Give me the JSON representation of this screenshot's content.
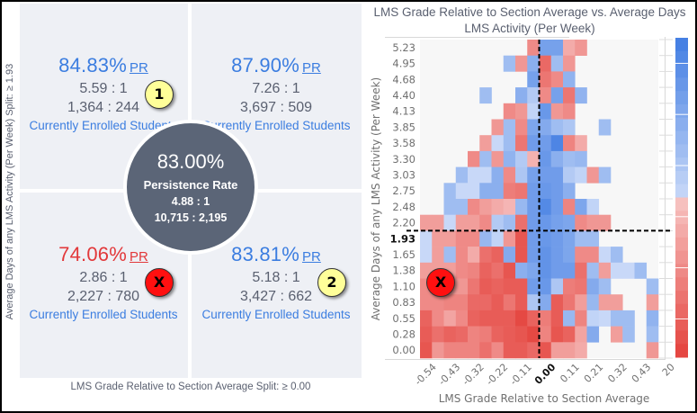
{
  "quadrants": {
    "top_left": {
      "pct": "84.83%",
      "pr": "PR",
      "ratio": "5.59 : 1",
      "counts": "1,364 : 244",
      "label": "Currently Enrolled Students",
      "status": "good"
    },
    "top_right": {
      "pct": "87.90%",
      "pr": "PR",
      "ratio": "7.26 : 1",
      "counts": "3,697 : 509",
      "label": "Currently Enrolled Students",
      "status": "good"
    },
    "bottom_left": {
      "pct": "74.06%",
      "pr": "PR",
      "ratio": "2.86 : 1",
      "counts": "2,227 : 780",
      "label": "Currently Enrolled Students",
      "status": "bad"
    },
    "bottom_right": {
      "pct": "83.81%",
      "pr": "PR",
      "ratio": "5.18 : 1",
      "counts": "3,427 : 662",
      "label": "Currently Enrolled Students",
      "status": "good"
    }
  },
  "center": {
    "pct": "83.00%",
    "label": "Persistence Rate",
    "ratio": "4.88 : 1",
    "counts": "10,715 : 2,195"
  },
  "badges": {
    "one": "1",
    "two": "2",
    "x_left": "X",
    "x_chart": "X"
  },
  "axis_labels": {
    "left_vertical": "Average Days of any LMS Activity (Per Week) Split: ≥ 1.93",
    "bottom": "LMS Grade Relative to Section Average Split: ≥ 0.00"
  },
  "colors": {
    "blue": "#3b7de0",
    "red": "#e2383a",
    "circle": "#5b6577",
    "empty": "#f7f7f7"
  },
  "chart_data": {
    "type": "heatmap",
    "title": "LMS Grade Relative to Section Average vs. Average Days LMS Activity (Per Week)",
    "xlabel": "LMS Grade Relative to Section Average",
    "ylabel": "Average Days of any LMS Activity (Per Week)",
    "x_ticks": [
      "-0.54",
      "-0.43",
      "-0.32",
      "-0.22",
      "-0.11",
      "0.00",
      "0.11",
      "0.21",
      "0.32",
      "0.43",
      "20"
    ],
    "x_split": "0.00",
    "y_ticks": [
      "5.23",
      "4.95",
      "4.68",
      "4.40",
      "4.13",
      "3.85",
      "3.58",
      "3.30",
      "3.03",
      "2.75",
      "2.48",
      "2.20",
      "1.93",
      "1.65",
      "1.38",
      "1.10",
      "0.83",
      "0.55",
      "0.28",
      "0.00"
    ],
    "y_split": "1.93",
    "n_cols": 20,
    "value_scale": "negative = red (lower persistence), positive = blue (higher persistence), null = no data",
    "legend": "colorbar-right",
    "rows": [
      [
        null,
        null,
        null,
        null,
        null,
        null,
        null,
        null,
        null,
        -0.45,
        0.6,
        0.6,
        -0.2,
        -0.35,
        null,
        null,
        null,
        null,
        null,
        null
      ],
      [
        null,
        null,
        null,
        null,
        null,
        null,
        null,
        0.3,
        -0.35,
        0.45,
        -0.7,
        0.3,
        -0.35,
        null,
        null,
        null,
        null,
        null,
        null,
        null
      ],
      [
        null,
        null,
        null,
        null,
        null,
        null,
        null,
        null,
        null,
        0.6,
        -0.6,
        -0.45,
        0.4,
        null,
        null,
        null,
        null,
        null,
        null,
        null
      ],
      [
        null,
        null,
        null,
        null,
        null,
        0.3,
        null,
        null,
        0.45,
        0.15,
        -0.45,
        0.6,
        -0.6,
        0.4,
        null,
        null,
        null,
        null,
        null,
        null
      ],
      [
        null,
        null,
        null,
        null,
        null,
        null,
        null,
        -0.45,
        -0.35,
        0.05,
        0.7,
        -0.35,
        -0.45,
        null,
        null,
        null,
        null,
        null,
        null,
        null
      ],
      [
        null,
        null,
        null,
        null,
        null,
        null,
        -0.35,
        0.3,
        -0.45,
        0.55,
        0.5,
        0.3,
        0.2,
        null,
        null,
        0.3,
        null,
        null,
        null,
        null
      ],
      [
        null,
        null,
        null,
        null,
        null,
        -0.3,
        0.0,
        0.3,
        -0.6,
        0.65,
        0.65,
        0.9,
        -0.5,
        -0.2,
        null,
        null,
        null,
        null,
        null,
        null
      ],
      [
        null,
        null,
        null,
        null,
        -0.45,
        0.3,
        -0.35,
        0.4,
        0.15,
        -0.15,
        0.7,
        0.45,
        0.3,
        0.35,
        null,
        null,
        null,
        null,
        null,
        null
      ],
      [
        null,
        null,
        null,
        0.3,
        0.0,
        0.0,
        0.45,
        -0.45,
        0.2,
        0.6,
        0.65,
        0.65,
        0.15,
        0.05,
        -0.35,
        0.3,
        null,
        null,
        null,
        null
      ],
      [
        null,
        null,
        0.3,
        0.0,
        0.0,
        0.45,
        0.45,
        -0.55,
        -0.6,
        0.65,
        0.7,
        0.65,
        0.45,
        null,
        null,
        null,
        null,
        null,
        null,
        null
      ],
      [
        null,
        null,
        0.3,
        0.3,
        -0.45,
        -0.3,
        -0.2,
        -0.12,
        0.35,
        0.65,
        0.85,
        0.65,
        -0.5,
        0.55,
        0.05,
        null,
        null,
        null,
        null,
        null
      ],
      [
        -0.3,
        -0.3,
        0.0,
        -0.3,
        -0.3,
        -0.45,
        0.15,
        0.3,
        -0.65,
        0.65,
        0.7,
        0.6,
        0.55,
        -0.45,
        -0.35,
        -0.35,
        null,
        null,
        null,
        null
      ],
      [
        0.0,
        -0.3,
        -0.3,
        -0.45,
        -0.45,
        0.35,
        0.05,
        -0.35,
        -0.85,
        0.65,
        0.7,
        0.65,
        0.55,
        0.3,
        0.3,
        null,
        null,
        null,
        null,
        null
      ],
      [
        0.0,
        -0.3,
        0.3,
        -0.45,
        -0.2,
        -0.65,
        -0.75,
        0.5,
        -0.85,
        0.65,
        0.75,
        0.65,
        0.55,
        -0.45,
        -0.45,
        0.0,
        0.3,
        null,
        null,
        null
      ],
      [
        -0.3,
        -0.3,
        -0.3,
        -0.45,
        -0.5,
        -0.75,
        -0.65,
        -0.85,
        0.45,
        0.55,
        0.75,
        0.65,
        0.65,
        -0.65,
        0.3,
        -0.3,
        0.0,
        0.0,
        0.3,
        null
      ],
      [
        -0.45,
        -0.45,
        -0.35,
        -0.35,
        -0.6,
        -0.8,
        -0.75,
        -0.8,
        -0.8,
        0.65,
        0.7,
        0.2,
        -0.55,
        -0.6,
        0.5,
        0.3,
        null,
        null,
        null,
        0.3
      ],
      [
        -0.45,
        -0.45,
        -0.5,
        -0.5,
        -0.7,
        -0.7,
        -0.8,
        -0.6,
        -0.8,
        0.2,
        0.5,
        -0.8,
        -0.6,
        -0.3,
        0.35,
        -0.3,
        -0.3,
        null,
        null,
        -0.3
      ],
      [
        -0.75,
        -0.45,
        -0.25,
        -0.45,
        -0.75,
        -0.8,
        -0.8,
        -0.8,
        -0.95,
        -0.75,
        -0.55,
        -0.8,
        0.35,
        -0.5,
        0.05,
        0.0,
        0.3,
        0.3,
        null,
        0.4
      ],
      [
        -0.8,
        -0.65,
        -0.75,
        -0.7,
        -0.5,
        -0.55,
        -0.75,
        -0.8,
        -0.85,
        -0.95,
        -0.5,
        -0.85,
        -0.75,
        -0.25,
        0.5,
        null,
        -0.3,
        0.3,
        null,
        0.3
      ],
      [
        -0.85,
        -0.35,
        -0.5,
        -0.5,
        -0.5,
        -0.65,
        -0.45,
        -0.8,
        -0.8,
        -0.7,
        -0.85,
        -0.3,
        -0.3,
        -0.2,
        null,
        null,
        null,
        null,
        null,
        -0.35
      ]
    ]
  }
}
